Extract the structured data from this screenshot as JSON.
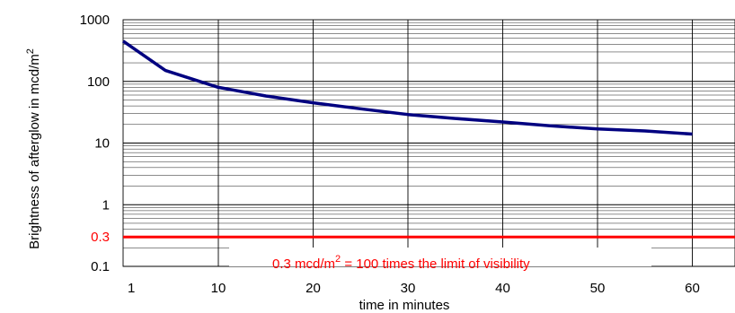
{
  "chart_data": {
    "type": "line",
    "xlabel": "time in minutes",
    "ylabel": "Brightness of afterglow in mcd/m",
    "ylabel_superscript": "2",
    "y_scale": "log",
    "xlim": [
      1,
      64
    ],
    "ylim": [
      0.1,
      1000
    ],
    "x_ticks": [
      "1",
      "10",
      "20",
      "30",
      "40",
      "50",
      "60"
    ],
    "y_ticks": [
      "1000",
      "100",
      "10",
      "1",
      "0.3",
      "0.1"
    ],
    "grid": true,
    "series": [
      {
        "color": "#000080",
        "x": [
          1,
          5,
          10,
          15,
          20,
          25,
          30,
          35,
          40,
          45,
          50,
          55,
          60
        ],
        "y": [
          450,
          150,
          80,
          58,
          45,
          36,
          29,
          25,
          22,
          19,
          17,
          15.7,
          14
        ]
      }
    ],
    "reference_line": {
      "y": 0.3,
      "color": "#ff0000",
      "tick_label": "0.3",
      "annotation": {
        "text_before": "0.3 mcd/m",
        "superscript": "2",
        "text_after": " = 100 times the limit of visibility"
      }
    }
  }
}
